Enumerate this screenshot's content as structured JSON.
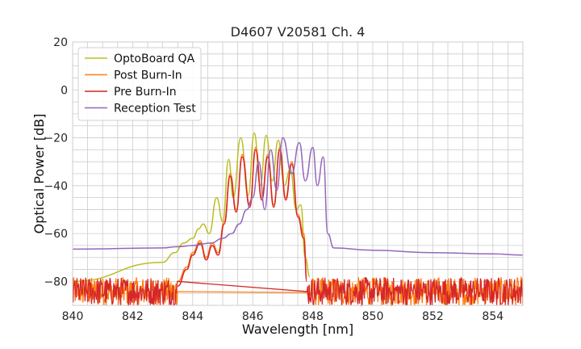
{
  "chart_data": {
    "type": "line",
    "title": "D4607 V20581 Ch. 4",
    "xlabel": "Wavelength [nm]",
    "ylabel": "Optical Power [dB]",
    "xlim": [
      840,
      855
    ],
    "ylim": [
      -90,
      20
    ],
    "xticks": [
      840,
      842,
      844,
      846,
      848,
      850,
      852,
      854
    ],
    "xtick_labels": [
      "840",
      "842",
      "844",
      "846",
      "848",
      "850",
      "852",
      "854"
    ],
    "yticks": [
      20,
      0,
      -20,
      -40,
      -60,
      -80
    ],
    "ytick_labels": [
      "20",
      "0",
      "−20",
      "−40",
      "−60",
      "−80"
    ],
    "grid": true,
    "legend_position": "top-left",
    "series": [
      {
        "name": "OptoBoard QA",
        "color": "#bcbd22",
        "noise_floor": {
          "x_range": [
            840,
            847.9
          ],
          "level": -86,
          "amplitude": 12
        },
        "x": [
          840,
          843.0,
          843.4,
          843.7,
          844.0,
          844.2,
          844.35,
          844.55,
          844.8,
          845.0,
          845.2,
          845.35,
          845.6,
          845.85,
          846.05,
          846.25,
          846.45,
          846.65,
          846.85,
          847.05,
          847.25,
          847.45,
          847.6,
          847.75,
          847.9
        ],
        "values": [
          -80,
          -72,
          -68,
          -64,
          -62,
          -58,
          -56,
          -60,
          -45,
          -55,
          -29,
          -45,
          -20,
          -44,
          -18,
          -40,
          -19,
          -38,
          -21,
          -40,
          -33,
          -50,
          -48,
          -70,
          -78
        ]
      },
      {
        "name": "Post Burn-In",
        "color": "#ff7f0e",
        "noise_floor": {
          "x_range": [
            840,
            855
          ],
          "level": -86,
          "amplitude": 12
        },
        "x": [
          843.5,
          843.8,
          844.0,
          844.25,
          844.45,
          844.65,
          844.85,
          845.05,
          845.25,
          845.45,
          845.65,
          845.9,
          846.1,
          846.3,
          846.5,
          846.7,
          846.9,
          847.1,
          847.3,
          847.5,
          847.7,
          847.8
        ],
        "values": [
          -80,
          -74,
          -68,
          -63,
          -70,
          -64,
          -68,
          -55,
          -35,
          -50,
          -27,
          -48,
          -24,
          -45,
          -27,
          -48,
          -24,
          -45,
          -30,
          -52,
          -60,
          -78
        ]
      },
      {
        "name": "Pre Burn-In",
        "color": "#d62728",
        "noise_floor": {
          "x_range": [
            840,
            855
          ],
          "level": -86,
          "amplitude": 12
        },
        "x": [
          843.5,
          843.8,
          844.0,
          844.25,
          844.45,
          844.65,
          844.85,
          845.05,
          845.25,
          845.45,
          845.65,
          845.9,
          846.1,
          846.3,
          846.5,
          846.7,
          846.9,
          847.1,
          847.3,
          847.5,
          847.7,
          847.8
        ],
        "values": [
          -82,
          -75,
          -69,
          -64,
          -71,
          -65,
          -69,
          -56,
          -36,
          -51,
          -28,
          -49,
          -25,
          -46,
          -28,
          -49,
          -25,
          -46,
          -31,
          -53,
          -62,
          -80
        ]
      },
      {
        "name": "Reception Test",
        "color": "#9467bd",
        "x": [
          840,
          843,
          843.5,
          844.0,
          844.6,
          845.0,
          845.3,
          845.55,
          845.8,
          846.0,
          846.2,
          846.4,
          846.6,
          846.8,
          847.0,
          847.3,
          847.55,
          847.75,
          848.0,
          848.15,
          848.35,
          848.5,
          848.7,
          850,
          852,
          854,
          855
        ],
        "values": [
          -66.5,
          -66,
          -65.5,
          -65,
          -64,
          -62,
          -60,
          -56,
          -50,
          -45,
          -30,
          -50,
          -25,
          -42,
          -20,
          -35,
          -22,
          -38,
          -24,
          -40,
          -28,
          -60,
          -66,
          -67,
          -68,
          -68.5,
          -69
        ]
      }
    ]
  }
}
